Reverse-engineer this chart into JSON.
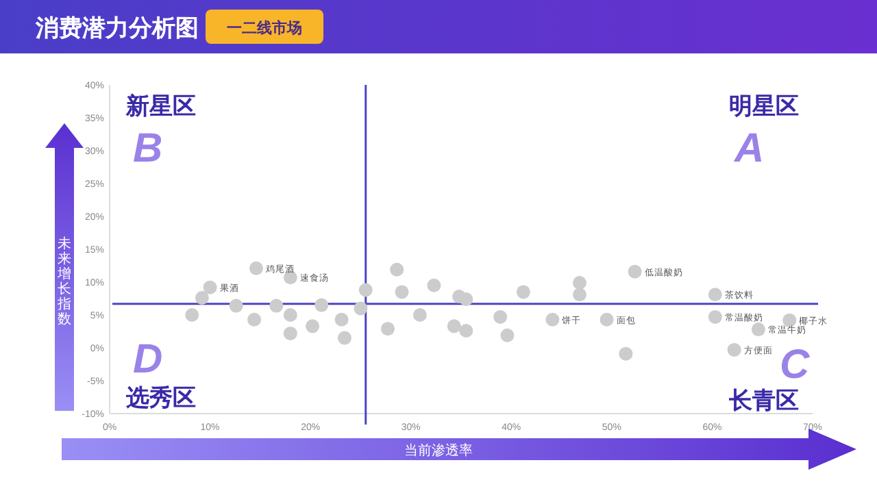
{
  "chart_data": {
    "type": "scatter",
    "title": "消费潜力分析图",
    "subtitle": "一二线市场",
    "xlabel": "当前渗透率",
    "ylabel": "未来增长指数",
    "x": [
      14.6,
      18.0,
      10.0,
      9.2,
      8.2,
      12.6,
      14.4,
      16.6,
      18.0,
      18.0,
      20.2,
      21.1,
      23.1,
      23.4,
      25.5,
      25.0,
      27.7,
      28.6,
      29.1,
      30.9,
      32.3,
      34.8,
      35.5,
      34.3,
      35.5,
      38.9,
      39.6,
      41.2,
      44.1,
      46.8,
      46.8,
      49.5,
      52.3,
      51.4,
      60.3,
      60.3,
      64.6,
      67.7,
      62.2
    ],
    "series": [
      {
        "color": "#cccccc",
        "values": [
          12.1,
          10.7,
          9.2,
          7.6,
          5.0,
          6.4,
          4.3,
          6.4,
          5.0,
          2.2,
          3.3,
          6.5,
          4.3,
          1.5,
          8.8,
          6.0,
          2.9,
          11.9,
          8.5,
          5.0,
          9.5,
          7.8,
          7.4,
          3.3,
          2.6,
          4.7,
          1.9,
          8.5,
          4.3,
          9.9,
          8.1,
          4.3,
          11.6,
          -0.9,
          8.1,
          4.7,
          2.8,
          4.2,
          -0.3
        ]
      }
    ],
    "xlim": [
      0,
      70
    ],
    "xticks": [
      {
        "value": 0,
        "label": "0%"
      },
      {
        "value": 10,
        "label": "10%"
      },
      {
        "value": 20,
        "label": "20%"
      },
      {
        "value": 30,
        "label": "30%"
      },
      {
        "value": 40,
        "label": "40%"
      },
      {
        "value": 50,
        "label": "50%"
      },
      {
        "value": 60,
        "label": "60%"
      },
      {
        "value": 70,
        "label": "70%"
      }
    ],
    "ylim": [
      -10,
      40
    ],
    "yticks": [
      {
        "value": -10,
        "label": "-10%"
      },
      {
        "value": -5,
        "label": "-5%"
      },
      {
        "value": 0,
        "label": "0%"
      },
      {
        "value": 5,
        "label": "5%"
      },
      {
        "value": 10,
        "label": "10%"
      },
      {
        "value": 15,
        "label": "15%"
      },
      {
        "value": 20,
        "label": "20%"
      },
      {
        "value": 25,
        "label": "25%"
      },
      {
        "value": 30,
        "label": "30%"
      },
      {
        "value": 35,
        "label": "35%"
      },
      {
        "value": 40,
        "label": "40%"
      }
    ],
    "ref_lines": [
      {
        "axis": "x",
        "value": 25.5,
        "color": "#4b44c8"
      },
      {
        "axis": "y",
        "value": 6.7,
        "color": "#4b44c8"
      }
    ],
    "marker": "circle",
    "annotations": [
      "新星区",
      "B",
      "明星区",
      "A",
      "选秀区",
      "D",
      "长青区",
      "C",
      {
        "text": "鸡尾酒",
        "x": 14.6,
        "y": 12.1
      },
      {
        "text": "速食汤",
        "x": 18.0,
        "y": 10.7
      },
      {
        "text": "果酒",
        "x": 10.0,
        "y": 9.2
      },
      {
        "text": "低温酸奶",
        "x": 52.3,
        "y": 11.6
      },
      {
        "text": "茶饮料",
        "x": 60.3,
        "y": 8.1
      },
      {
        "text": "常温酸奶",
        "x": 60.3,
        "y": 4.7
      },
      {
        "text": "常温牛奶",
        "x": 64.6,
        "y": 2.8
      },
      {
        "text": "椰子水",
        "x": 67.7,
        "y": 4.2
      },
      {
        "text": "方便面",
        "x": 62.2,
        "y": -0.3
      },
      {
        "text": "饼干",
        "x": 44.1,
        "y": 4.3
      },
      {
        "text": "面包",
        "x": 49.5,
        "y": 4.3
      }
    ]
  }
}
